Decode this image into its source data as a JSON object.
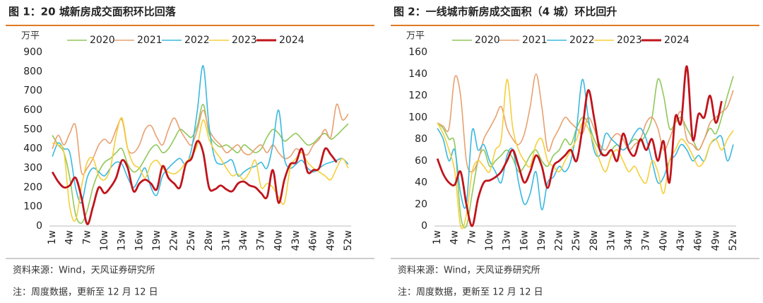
{
  "chart_data": [
    {
      "type": "line",
      "title": "图 1：20 城新房成交面积环比回落",
      "y_unit": "万平",
      "source": "资料来源：Wind，天风证券研究所",
      "note": "注：周度数据，更新至 12 月 12 日",
      "categories": [
        "1w",
        null,
        null,
        "4w",
        null,
        null,
        "7w",
        null,
        null,
        "10w",
        null,
        null,
        "13w",
        null,
        null,
        "16w",
        null,
        null,
        "19w",
        null,
        null,
        "22w",
        null,
        null,
        "25w",
        null,
        null,
        "28w",
        null,
        null,
        "31w",
        null,
        null,
        "34w",
        null,
        null,
        "37w",
        null,
        null,
        "40w",
        null,
        null,
        "43w",
        null,
        null,
        "46w",
        null,
        null,
        "49w",
        null,
        null,
        "52w"
      ],
      "ylim": [
        0,
        900
      ],
      "yticks": [
        0,
        100,
        200,
        300,
        400,
        500,
        600,
        700,
        800,
        900
      ],
      "grid": false,
      "legend": "top",
      "series": [
        {
          "name": "2020",
          "color": "#8fc85a",
          "values": [
            470,
            420,
            380,
            250,
            60,
            15,
            80,
            200,
            280,
            330,
            350,
            380,
            400,
            320,
            280,
            300,
            350,
            400,
            420,
            380,
            400,
            450,
            500,
            480,
            460,
            520,
            630,
            480,
            430,
            410,
            420,
            400,
            380,
            420,
            400,
            380,
            400,
            460,
            500,
            480,
            440,
            460,
            480,
            450,
            420,
            430,
            460,
            480,
            450,
            470,
            500,
            530
          ]
        },
        {
          "name": "2021",
          "color": "#e8a070",
          "values": [
            400,
            470,
            420,
            480,
            520,
            280,
            300,
            350,
            420,
            450,
            430,
            500,
            550,
            400,
            380,
            420,
            500,
            520,
            460,
            420,
            500,
            560,
            500,
            450,
            420,
            500,
            600,
            500,
            450,
            420,
            380,
            400,
            420,
            380,
            370,
            400,
            420,
            380,
            420,
            380,
            350,
            360,
            400,
            380,
            370,
            420,
            450,
            500,
            460,
            630,
            550,
            580
          ]
        },
        {
          "name": "2022",
          "color": "#3bb8e0",
          "values": [
            360,
            430,
            400,
            380,
            200,
            120,
            250,
            300,
            280,
            260,
            300,
            330,
            320,
            250,
            200,
            250,
            300,
            200,
            160,
            260,
            300,
            330,
            350,
            320,
            400,
            600,
            830,
            520,
            350,
            320,
            330,
            340,
            260,
            280,
            300,
            310,
            330,
            300,
            420,
            600,
            350,
            300,
            320,
            340,
            300,
            280,
            300,
            320,
            330,
            340,
            350,
            320
          ]
        },
        {
          "name": "2023",
          "color": "#f5cf3a",
          "values": [
            430,
            420,
            380,
            100,
            30,
            200,
            330,
            350,
            260,
            240,
            300,
            470,
            560,
            400,
            320,
            300,
            250,
            320,
            340,
            300,
            280,
            270,
            290,
            330,
            360,
            420,
            550,
            450,
            390,
            350,
            300,
            260,
            270,
            240,
            280,
            340,
            200,
            220,
            200,
            150,
            120,
            300,
            350,
            380,
            330,
            300,
            280,
            260,
            240,
            300,
            350,
            300
          ]
        },
        {
          "name": "2024",
          "color": "#c0141c",
          "values": [
            280,
            230,
            200,
            210,
            250,
            150,
            10,
            100,
            200,
            170,
            200,
            250,
            340,
            300,
            180,
            220,
            240,
            220,
            190,
            310,
            250,
            220,
            200,
            320,
            350,
            440,
            380,
            200,
            190,
            210,
            190,
            180,
            220,
            230,
            210,
            200,
            170,
            150,
            290,
            120,
            240,
            320,
            330,
            400,
            280,
            290,
            300,
            400,
            370,
            330,
            null,
            null
          ]
        }
      ]
    },
    {
      "type": "line",
      "title": "图 2：一线城市新房成交面积（4 城）环比回升",
      "y_unit": "万平",
      "source": "资料来源：Wind，天风证券研究所",
      "note": "注：周度数据，更新至 12 月 12 日",
      "categories": [
        "1w",
        null,
        null,
        "4w",
        null,
        null,
        "7w",
        null,
        null,
        "10w",
        null,
        null,
        "13w",
        null,
        null,
        "16w",
        null,
        null,
        "19w",
        null,
        null,
        "22w",
        null,
        null,
        "25w",
        null,
        null,
        "28w",
        null,
        null,
        "31w",
        null,
        null,
        "34w",
        null,
        null,
        "37w",
        null,
        null,
        "40w",
        null,
        null,
        "43w",
        null,
        null,
        "46w",
        null,
        null,
        "49w",
        null,
        null,
        "52w"
      ],
      "ylim": [
        0,
        160
      ],
      "yticks": [
        0,
        20,
        40,
        60,
        80,
        100,
        120,
        140,
        160
      ],
      "grid": false,
      "legend": "top",
      "series": [
        {
          "name": "2020",
          "color": "#8fc85a",
          "values": [
            95,
            90,
            80,
            75,
            10,
            0,
            30,
            60,
            70,
            55,
            60,
            65,
            70,
            62,
            50,
            55,
            65,
            70,
            60,
            55,
            65,
            70,
            80,
            75,
            90,
            100,
            95,
            80,
            70,
            65,
            70,
            75,
            70,
            75,
            80,
            78,
            85,
            100,
            135,
            120,
            90,
            95,
            100,
            90,
            80,
            70,
            80,
            90,
            85,
            100,
            120,
            138
          ]
        },
        {
          "name": "2021",
          "color": "#e8a070",
          "values": [
            95,
            92,
            90,
            137,
            120,
            60,
            50,
            60,
            80,
            90,
            100,
            110,
            90,
            80,
            75,
            85,
            110,
            140,
            110,
            70,
            80,
            90,
            100,
            95,
            90,
            85,
            100,
            90,
            75,
            70,
            80,
            85,
            80,
            70,
            75,
            80,
            95,
            100,
            90,
            70,
            80,
            95,
            105,
            80,
            75,
            70,
            80,
            95,
            100,
            105,
            110,
            125
          ]
        },
        {
          "name": "2022",
          "color": "#3bb8e0",
          "values": [
            90,
            80,
            60,
            70,
            30,
            20,
            88,
            70,
            75,
            60,
            50,
            40,
            65,
            70,
            40,
            20,
            30,
            50,
            15,
            40,
            45,
            55,
            50,
            60,
            90,
            135,
            100,
            70,
            65,
            85,
            80,
            75,
            70,
            75,
            85,
            90,
            80,
            60,
            40,
            45,
            60,
            65,
            75,
            70,
            60,
            65,
            60,
            75,
            80,
            82,
            60,
            75
          ]
        },
        {
          "name": "2023",
          "color": "#f5cf3a",
          "values": [
            95,
            85,
            70,
            50,
            0,
            10,
            50,
            60,
            55,
            50,
            70,
            80,
            135,
            90,
            70,
            60,
            55,
            75,
            80,
            60,
            55,
            50,
            60,
            70,
            80,
            95,
            90,
            75,
            60,
            50,
            65,
            70,
            60,
            50,
            55,
            45,
            40,
            60,
            50,
            30,
            60,
            70,
            80,
            75,
            65,
            55,
            60,
            75,
            80,
            70,
            80,
            88
          ]
        },
        {
          "name": "2024",
          "color": "#c0141c",
          "values": [
            62,
            48,
            40,
            38,
            50,
            20,
            0,
            25,
            40,
            42,
            45,
            50,
            60,
            70,
            55,
            40,
            50,
            65,
            55,
            35,
            55,
            60,
            65,
            70,
            60,
            90,
            125,
            100,
            70,
            65,
            70,
            60,
            85,
            70,
            65,
            80,
            70,
            80,
            60,
            78,
            40,
            100,
            95,
            147,
            80,
            103,
            100,
            120,
            95,
            115,
            null,
            null
          ]
        }
      ]
    }
  ]
}
